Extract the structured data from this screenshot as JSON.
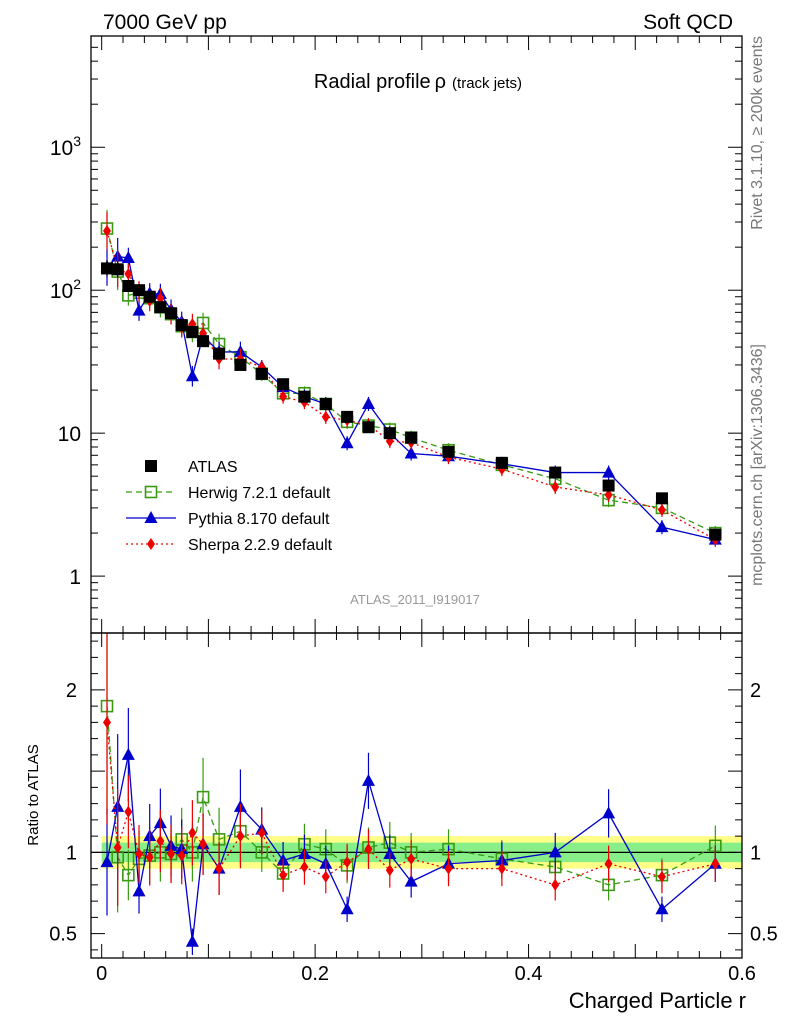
{
  "header": {
    "left": "7000 GeV pp",
    "right": "Soft QCD"
  },
  "side": {
    "top": "Rivet 3.1.10, ≥ 200k events",
    "bottom": "mcplots.cern.ch [arXiv:1306.3436]"
  },
  "colors": {
    "atlas": "#000000",
    "herwig": "#3a9a12",
    "pythia": "#0000cc",
    "sherpa": "#ee0000",
    "band_inner": "#88ee88",
    "band_outer": "#ffff88"
  },
  "chart_data": {
    "type": "scatter",
    "title": "Radial profile",
    "title_symbol": "ρ",
    "title_suffix": "(track jets)",
    "analysis_label": "ATLAS_2011_I919017",
    "xlabel": "Charged Particle r",
    "ylabel_ratio": "Ratio to ATLAS",
    "xlim": [
      -0.01,
      0.6
    ],
    "ylim_main_log": [
      0.4,
      6000
    ],
    "ylim_ratio": [
      0.35,
      2.35
    ],
    "x_ticks": [
      "0",
      "0.2",
      "0.4",
      "0.6"
    ],
    "x_tick_values": [
      0,
      0.2,
      0.4,
      0.6
    ],
    "y_ticks_main": [
      "10^3",
      "10^2",
      "10",
      "1"
    ],
    "y_tick_values_main": [
      1000,
      100,
      10,
      1
    ],
    "y_ticks_ratio": [
      "2",
      "1",
      "0.5"
    ],
    "y_tick_values_ratio": [
      2,
      1,
      0.5
    ],
    "x": [
      0.005,
      0.015,
      0.025,
      0.035,
      0.045,
      0.055,
      0.065,
      0.075,
      0.085,
      0.095,
      0.11,
      0.13,
      0.15,
      0.17,
      0.19,
      0.21,
      0.23,
      0.25,
      0.27,
      0.29,
      0.325,
      0.375,
      0.425,
      0.475,
      0.525,
      0.575
    ],
    "band_inner": [
      0.06,
      0.06,
      0.06,
      0.06,
      0.06,
      0.06,
      0.06,
      0.06,
      0.06,
      0.06,
      0.06,
      0.06,
      0.06,
      0.06,
      0.06,
      0.06,
      0.06,
      0.06,
      0.06,
      0.06,
      0.06,
      0.06,
      0.06,
      0.06,
      0.06,
      0.06
    ],
    "band_outer": [
      0.1,
      0.1,
      0.1,
      0.1,
      0.09,
      0.09,
      0.08,
      0.08,
      0.08,
      0.08,
      0.08,
      0.08,
      0.08,
      0.08,
      0.08,
      0.08,
      0.08,
      0.08,
      0.08,
      0.08,
      0.08,
      0.08,
      0.08,
      0.08,
      0.08,
      0.08
    ],
    "series": [
      {
        "name": "ATLAS",
        "key": "atlas",
        "marker": "square-filled",
        "line": "none",
        "values": [
          142,
          140,
          107,
          100,
          90,
          76,
          69,
          57,
          51,
          44,
          36,
          30,
          26,
          22,
          18,
          16,
          13,
          11,
          10,
          9.3,
          7.4,
          6.2,
          5.3,
          4.3,
          3.5,
          1.95
        ],
        "ratio": [
          1,
          1,
          1,
          1,
          1,
          1,
          1,
          1,
          1,
          1,
          1,
          1,
          1,
          1,
          1,
          1,
          1,
          1,
          1,
          1,
          1,
          1,
          1,
          1,
          1,
          1
        ]
      },
      {
        "name": "Herwig 7.2.1 default",
        "key": "herwig",
        "marker": "square-open",
        "line": "dashed",
        "values": [
          270,
          135,
          92,
          96,
          88,
          76,
          68,
          56,
          51,
          59,
          42,
          34,
          26,
          19,
          19,
          16,
          12,
          11.3,
          10.6,
          9.3,
          7.6,
          6,
          4.8,
          3.4,
          3,
          2
        ],
        "ratio": [
          1.9,
          0.97,
          0.86,
          0.96,
          0.98,
          1,
          0.99,
          1.08,
          1.0,
          1.34,
          1.08,
          1.13,
          1.0,
          0.87,
          1.05,
          1.02,
          0.92,
          1.03,
          1.06,
          1.0,
          1.02,
          0.96,
          0.91,
          0.8,
          0.86,
          1.04
        ]
      },
      {
        "name": "Pythia 8.170 default",
        "key": "pythia",
        "marker": "triangle",
        "line": "solid",
        "values": [
          145,
          172,
          168,
          72,
          95,
          94,
          73,
          60,
          25,
          48,
          37,
          37,
          29,
          21,
          18,
          16,
          8.5,
          16,
          10,
          7.2,
          6.9,
          6.1,
          5.3,
          5.3,
          2.2,
          1.8
        ],
        "ratio": [
          0.94,
          1.28,
          1.6,
          0.76,
          1.1,
          1.18,
          1.04,
          1.02,
          0.45,
          1.05,
          0.9,
          1.28,
          1.14,
          0.95,
          0.99,
          0.93,
          0.65,
          1.44,
          0.99,
          0.82,
          0.93,
          0.95,
          1.0,
          1.24,
          0.65,
          0.93
        ]
      },
      {
        "name": "Sherpa 2.2.9 default",
        "key": "sherpa",
        "marker": "diamond",
        "line": "dotted",
        "values": [
          260,
          142,
          130,
          98,
          84,
          88,
          68,
          55,
          58,
          50,
          33,
          33,
          29,
          18,
          16.5,
          13,
          12.3,
          11.4,
          8.8,
          8.6,
          6.8,
          5.6,
          4.2,
          3.7,
          2.9,
          1.8
        ],
        "ratio": [
          1.8,
          1.03,
          1.25,
          0.99,
          0.97,
          1.07,
          0.99,
          0.98,
          1.12,
          1.05,
          0.9,
          1.1,
          1.12,
          0.86,
          0.91,
          0.85,
          0.94,
          1.02,
          0.89,
          0.96,
          0.9,
          0.9,
          0.8,
          0.93,
          0.85,
          0.93
        ]
      }
    ]
  }
}
